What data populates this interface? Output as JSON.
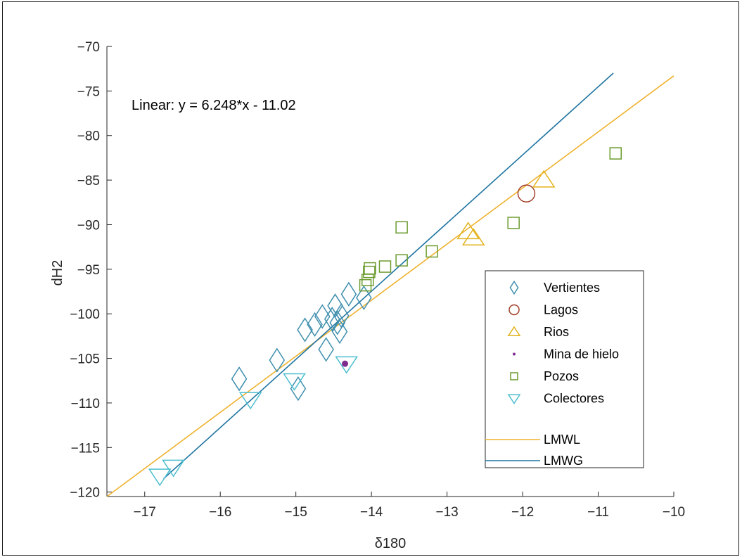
{
  "chart_data": {
    "type": "scatter",
    "title": "",
    "xlabel": "δ180",
    "ylabel": "dH2",
    "xlim": [
      -17.5,
      -10
    ],
    "ylim": [
      -120.5,
      -70
    ],
    "x_ticks": [
      -17,
      -16,
      -15,
      -14,
      -13,
      -12,
      -11,
      -10
    ],
    "y_ticks": [
      -120,
      -115,
      -110,
      -105,
      -100,
      -95,
      -90,
      -85,
      -80,
      -75,
      -70
    ],
    "annotation": "Linear:  y = 6.248*x - 11.02",
    "legend_position": "lower-right",
    "colors": {
      "vertientes": "#3f8fae",
      "lagos": "#a3412a",
      "rios": "#e3b21c",
      "mina": "#7e2f8e",
      "pozos": "#6b9b2e",
      "colectores": "#4cbecf",
      "lmwl": "#eeb22f",
      "lmwg": "#1f74a0"
    },
    "series": [
      {
        "name": "Vertientes",
        "marker": "diamond",
        "color_key": "vertientes",
        "points": [
          [
            -15.75,
            -107.3
          ],
          [
            -15.25,
            -105.2
          ],
          [
            -14.97,
            -108.4
          ],
          [
            -14.88,
            -101.8
          ],
          [
            -14.75,
            -101.2
          ],
          [
            -14.65,
            -100.3
          ],
          [
            -14.6,
            -104
          ],
          [
            -14.52,
            -100.6
          ],
          [
            -14.48,
            -99.1
          ],
          [
            -14.45,
            -101
          ],
          [
            -14.42,
            -102
          ],
          [
            -14.4,
            -100.2
          ],
          [
            -14.3,
            -97.8
          ],
          [
            -14.1,
            -98.2
          ]
        ]
      },
      {
        "name": "Lagos",
        "marker": "circle",
        "color_key": "lagos",
        "points": [
          [
            -11.95,
            -86.5
          ]
        ]
      },
      {
        "name": "Rios",
        "marker": "triangle-up",
        "color_key": "rios",
        "points": [
          [
            -12.72,
            -90.8
          ],
          [
            -12.65,
            -91.5
          ],
          [
            -11.72,
            -85
          ]
        ]
      },
      {
        "name": "Mina de hielo",
        "marker": "dot",
        "color_key": "mina",
        "points": [
          [
            -14.35,
            -105.6
          ]
        ]
      },
      {
        "name": "Pozos",
        "marker": "square",
        "color_key": "pozos",
        "points": [
          [
            -14.08,
            -96.8
          ],
          [
            -14.05,
            -96.2
          ],
          [
            -14.03,
            -95.3
          ],
          [
            -14.02,
            -94.9
          ],
          [
            -13.82,
            -94.7
          ],
          [
            -13.6,
            -94
          ],
          [
            -13.6,
            -90.3
          ],
          [
            -13.2,
            -93
          ],
          [
            -12.12,
            -89.8
          ],
          [
            -10.77,
            -82
          ]
        ]
      },
      {
        "name": "Colectores",
        "marker": "triangle-down",
        "color_key": "colectores",
        "points": [
          [
            -16.8,
            -118.2
          ],
          [
            -16.62,
            -117.2
          ],
          [
            -15.6,
            -109.6
          ],
          [
            -15.02,
            -107.5
          ],
          [
            -14.33,
            -105.6
          ]
        ]
      }
    ],
    "lines": [
      {
        "name": "LMWL",
        "color_key": "lmwl",
        "x": [
          -17.5,
          -10
        ],
        "y": [
          -120.5,
          -73.3
        ]
      },
      {
        "name": "LMWG",
        "color_key": "lmwg",
        "x": [
          -16.75,
          -10.8
        ],
        "y": [
          -118.5,
          -73
        ]
      }
    ]
  }
}
